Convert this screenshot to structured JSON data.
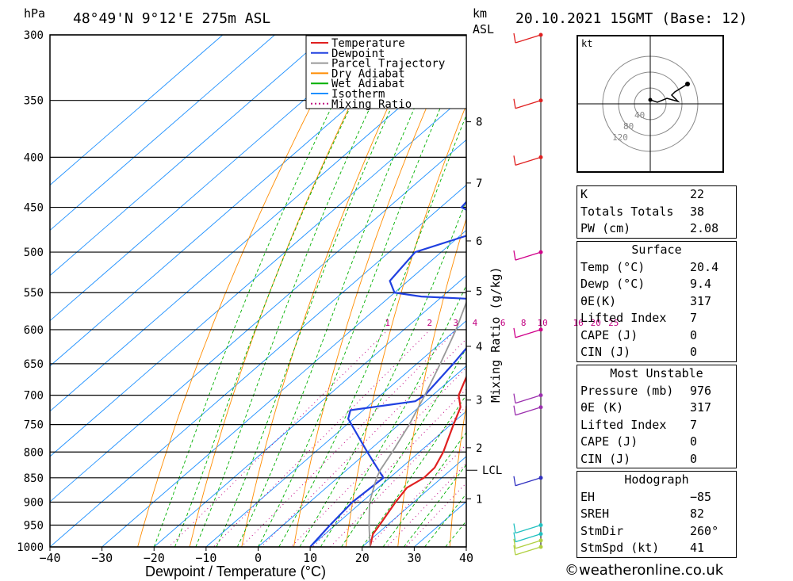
{
  "header": {
    "left_unit": "hPa",
    "location": "48°49'N  9°12'E  275m  ASL",
    "km_label": "km",
    "asl_label": "ASL",
    "datetime": "20.10.2021  15GMT  (Base: 12)"
  },
  "chart_data": {
    "type": "line",
    "xlabel": "Dewpoint / Temperature (°C)",
    "right_label": "Mixing Ratio (g/kg)",
    "xlim": [
      -40,
      40
    ],
    "x_ticks": [
      "−40",
      "−30",
      "−20",
      "−10",
      "0",
      "10",
      "20",
      "30",
      "40"
    ],
    "pressure_levels": [
      300,
      350,
      400,
      450,
      500,
      550,
      600,
      650,
      700,
      750,
      800,
      850,
      900,
      950,
      1000
    ],
    "height_ticks": [
      {
        "label": "8",
        "p": 368
      },
      {
        "label": "7",
        "p": 425
      },
      {
        "label": "6",
        "p": 487
      },
      {
        "label": "5",
        "p": 548
      },
      {
        "label": "4",
        "p": 624
      },
      {
        "label": "3",
        "p": 708
      },
      {
        "label": "2",
        "p": 792
      },
      {
        "label": "1",
        "p": 893
      }
    ],
    "lcl": {
      "label": "LCL",
      "p": 835
    },
    "mixing_ratio_labels": [
      "1",
      "2",
      "3",
      "4",
      "6",
      "8",
      "10",
      "16",
      "20",
      "25"
    ],
    "legend": [
      {
        "name": "Temperature",
        "color": "#e02020",
        "style": "solid"
      },
      {
        "name": "Dewpoint",
        "color": "#2040e0",
        "style": "solid"
      },
      {
        "name": "Parcel Trajectory",
        "color": "#999999",
        "style": "solid"
      },
      {
        "name": "Dry Adiabat",
        "color": "#ff8c00",
        "style": "solid"
      },
      {
        "name": "Wet Adiabat",
        "color": "#00b000",
        "style": "solid"
      },
      {
        "name": "Isotherm",
        "color": "#1e90ff",
        "style": "solid"
      },
      {
        "name": "Mixing Ratio",
        "color": "#c00080",
        "style": "dotted"
      }
    ],
    "series": [
      {
        "name": "Temperature",
        "color": "#e02020",
        "points": [
          [
            1000,
            21.5
          ],
          [
            970,
            19.2
          ],
          [
            950,
            18.5
          ],
          [
            900,
            16.5
          ],
          [
            870,
            15.5
          ],
          [
            850,
            16.6
          ],
          [
            830,
            16.4
          ],
          [
            800,
            14.6
          ],
          [
            750,
            10.5
          ],
          [
            720,
            8.0
          ],
          [
            700,
            5.0
          ],
          [
            660,
            1.5
          ],
          [
            620,
            -2.5
          ],
          [
            580,
            -6.2
          ],
          [
            560,
            -7.6
          ],
          [
            550,
            -9.5
          ],
          [
            520,
            -13.5
          ],
          [
            500,
            -15.2
          ],
          [
            480,
            -18.5
          ],
          [
            450,
            -23.0
          ],
          [
            420,
            -28.5
          ],
          [
            400,
            -33.0
          ],
          [
            380,
            -35.0
          ],
          [
            360,
            -39.0
          ],
          [
            340,
            -42.0
          ],
          [
            320,
            -47.0
          ],
          [
            300,
            -51.0
          ]
        ]
      },
      {
        "name": "Dewpoint",
        "color": "#2040e0",
        "points": [
          [
            1000,
            10.0
          ],
          [
            950,
            9.0
          ],
          [
            900,
            8.2
          ],
          [
            850,
            8.8
          ],
          [
            800,
            0.0
          ],
          [
            740,
            -11.0
          ],
          [
            725,
            -12.5
          ],
          [
            710,
            -2.0
          ],
          [
            700,
            -1.5
          ],
          [
            650,
            -3.0
          ],
          [
            600,
            -5.0
          ],
          [
            560,
            -8.0
          ],
          [
            555,
            -24.0
          ],
          [
            550,
            -30.0
          ],
          [
            535,
            -33.5
          ],
          [
            500,
            -35.0
          ],
          [
            470,
            -25.0
          ],
          [
            450,
            -36.0
          ],
          [
            430,
            -37.0
          ],
          [
            427,
            -28.0
          ],
          [
            400,
            -31.0
          ],
          [
            385,
            -35.5
          ],
          [
            380,
            -32.5
          ],
          [
            355,
            -37.0
          ],
          [
            345,
            -38.0
          ],
          [
            300,
            -43.0
          ]
        ]
      },
      {
        "name": "Parcel Trajectory",
        "color": "#999999",
        "points": [
          [
            1000,
            21.5
          ],
          [
            950,
            16.5
          ],
          [
            900,
            11.5
          ],
          [
            850,
            7.5
          ],
          [
            835,
            6.5
          ],
          [
            800,
            4.8
          ],
          [
            750,
            2.0
          ],
          [
            700,
            -1.5
          ],
          [
            650,
            -5.5
          ],
          [
            600,
            -10.0
          ],
          [
            550,
            -15.5
          ],
          [
            500,
            -21.5
          ],
          [
            450,
            -28.5
          ],
          [
            400,
            -36.5
          ],
          [
            350,
            -45.5
          ],
          [
            300,
            -56.0
          ]
        ]
      }
    ],
    "wind_barbs_p": [
      300,
      350,
      400,
      500,
      600,
      700,
      720,
      850,
      950,
      970,
      985,
      1000
    ]
  },
  "hodograph": {
    "unit": "kt",
    "ring_labels": [
      "40",
      "80",
      "120"
    ]
  },
  "indices": {
    "k": {
      "label": "K",
      "value": "22"
    },
    "tt": {
      "label": "Totals Totals",
      "value": "38"
    },
    "pw": {
      "label": "PW (cm)",
      "value": "2.08"
    }
  },
  "surface": {
    "title": "Surface",
    "temp": {
      "label": "Temp (°C)",
      "value": "20.4"
    },
    "dewp": {
      "label": "Dewp (°C)",
      "value": "9.4"
    },
    "theta": {
      "label": "θE(K)",
      "value": "317"
    },
    "li": {
      "label": "Lifted Index",
      "value": "7"
    },
    "cape": {
      "label": "CAPE (J)",
      "value": "0"
    },
    "cin": {
      "label": "CIN (J)",
      "value": "0"
    }
  },
  "most_unstable": {
    "title": "Most Unstable",
    "pressure": {
      "label": "Pressure (mb)",
      "value": "976"
    },
    "theta": {
      "label": "θE (K)",
      "value": "317"
    },
    "li": {
      "label": "Lifted Index",
      "value": "7"
    },
    "cape": {
      "label": "CAPE (J)",
      "value": "0"
    },
    "cin": {
      "label": "CIN (J)",
      "value": "0"
    }
  },
  "hodo_params": {
    "title": "Hodograph",
    "eh": {
      "label": "EH",
      "value": "−85"
    },
    "sreh": {
      "label": "SREH",
      "value": "82"
    },
    "stmdir": {
      "label": "StmDir",
      "value": "260°"
    },
    "stmspd": {
      "label": "StmSpd (kt)",
      "value": "41"
    }
  },
  "footer": "©weatheronline.co.uk"
}
